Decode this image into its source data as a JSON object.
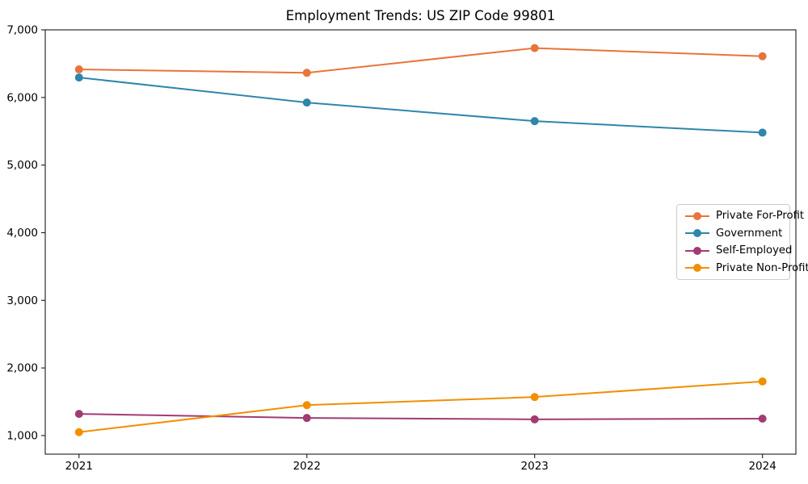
{
  "window": {
    "background_color": "#ffffff"
  },
  "chart_data": {
    "type": "line",
    "title": "Employment Trends: US ZIP Code 99801",
    "categories": [
      "2021",
      "2022",
      "2023",
      "2024"
    ],
    "series": [
      {
        "name": "Private For-Profit",
        "color": "#E8743B",
        "values": [
          6415,
          6365,
          6730,
          6610
        ]
      },
      {
        "name": "Government",
        "color": "#2E86AB",
        "values": [
          6295,
          5925,
          5650,
          5480
        ]
      },
      {
        "name": "Self-Employed",
        "color": "#A23B72",
        "values": [
          1320,
          1260,
          1240,
          1250
        ]
      },
      {
        "name": "Private Non-Profit",
        "color": "#F18F01",
        "values": [
          1050,
          1450,
          1570,
          1800
        ]
      }
    ],
    "xlabel": "",
    "ylabel": "",
    "ylim": [
      725,
      7000
    ],
    "yticks": [
      1000,
      2000,
      3000,
      4000,
      5000,
      6000,
      7000
    ],
    "ytick_format": "comma",
    "grid": false,
    "marker": "circle",
    "legend_position": "center-right",
    "axis_color": "#1a1a1a"
  }
}
